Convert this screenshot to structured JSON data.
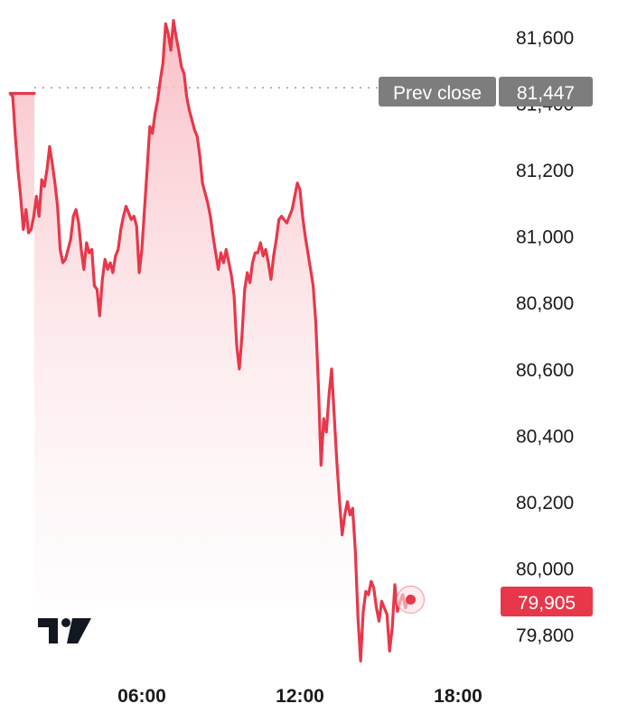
{
  "chart_data": {
    "type": "area",
    "prev_close_label": "Prev close",
    "prev_close_value_label": "81,447",
    "prev_close": 81447,
    "last_value_label": "79,905",
    "last_value": 79905,
    "y_ticks": [
      {
        "value": 81600,
        "label": "81,600"
      },
      {
        "value": 81400,
        "label": "81,400"
      },
      {
        "value": 81200,
        "label": "81,200"
      },
      {
        "value": 81000,
        "label": "81,000"
      },
      {
        "value": 80800,
        "label": "80,800"
      },
      {
        "value": 80600,
        "label": "80,600"
      },
      {
        "value": 80400,
        "label": "80,400"
      },
      {
        "value": 80200,
        "label": "80,200"
      },
      {
        "value": 80000,
        "label": "80,000"
      },
      {
        "value": 79800,
        "label": "79,800"
      }
    ],
    "x_ticks": [
      {
        "hour": 6,
        "label": "06:00"
      },
      {
        "hour": 12,
        "label": "12:00"
      },
      {
        "hour": 18,
        "label": "18:00"
      }
    ],
    "ylim": [
      79700,
      81700
    ],
    "xlim": [
      0.8,
      19.7
    ],
    "series": [
      {
        "values": [
          [
            1.0,
            81430
          ],
          [
            1.1,
            81420
          ],
          [
            1.2,
            81300
          ],
          [
            1.3,
            81200
          ],
          [
            1.4,
            81120
          ],
          [
            1.5,
            81020
          ],
          [
            1.6,
            81080
          ],
          [
            1.7,
            81010
          ],
          [
            1.8,
            81020
          ],
          [
            1.9,
            81060
          ],
          [
            2.0,
            81120
          ],
          [
            2.1,
            81060
          ],
          [
            2.2,
            81170
          ],
          [
            2.3,
            81150
          ],
          [
            2.4,
            81200
          ],
          [
            2.5,
            81270
          ],
          [
            2.6,
            81220
          ],
          [
            2.7,
            81160
          ],
          [
            2.8,
            81090
          ],
          [
            2.9,
            80960
          ],
          [
            3.0,
            80920
          ],
          [
            3.1,
            80930
          ],
          [
            3.2,
            80960
          ],
          [
            3.3,
            80990
          ],
          [
            3.4,
            81060
          ],
          [
            3.5,
            81080
          ],
          [
            3.6,
            81040
          ],
          [
            3.7,
            80960
          ],
          [
            3.8,
            80900
          ],
          [
            3.9,
            80980
          ],
          [
            4.0,
            80950
          ],
          [
            4.1,
            80960
          ],
          [
            4.2,
            80850
          ],
          [
            4.3,
            80840
          ],
          [
            4.4,
            80760
          ],
          [
            4.5,
            80870
          ],
          [
            4.6,
            80930
          ],
          [
            4.7,
            80900
          ],
          [
            4.8,
            80920
          ],
          [
            4.9,
            80890
          ],
          [
            5.0,
            80940
          ],
          [
            5.1,
            80960
          ],
          [
            5.2,
            81020
          ],
          [
            5.3,
            81060
          ],
          [
            5.4,
            81090
          ],
          [
            5.5,
            81070
          ],
          [
            5.6,
            81050
          ],
          [
            5.7,
            81060
          ],
          [
            5.8,
            81030
          ],
          [
            5.9,
            80890
          ],
          [
            6.0,
            80960
          ],
          [
            6.1,
            81080
          ],
          [
            6.2,
            81200
          ],
          [
            6.3,
            81330
          ],
          [
            6.4,
            81310
          ],
          [
            6.5,
            81370
          ],
          [
            6.6,
            81410
          ],
          [
            6.7,
            81470
          ],
          [
            6.8,
            81520
          ],
          [
            6.9,
            81640
          ],
          [
            7.0,
            81610
          ],
          [
            7.1,
            81560
          ],
          [
            7.2,
            81650
          ],
          [
            7.3,
            81600
          ],
          [
            7.4,
            81560
          ],
          [
            7.5,
            81510
          ],
          [
            7.6,
            81490
          ],
          [
            7.7,
            81420
          ],
          [
            7.8,
            81380
          ],
          [
            7.9,
            81350
          ],
          [
            8.0,
            81320
          ],
          [
            8.1,
            81300
          ],
          [
            8.2,
            81240
          ],
          [
            8.3,
            81160
          ],
          [
            8.4,
            81130
          ],
          [
            8.5,
            81100
          ],
          [
            8.6,
            81060
          ],
          [
            8.7,
            81000
          ],
          [
            8.8,
            80950
          ],
          [
            8.9,
            80900
          ],
          [
            9.0,
            80950
          ],
          [
            9.1,
            80920
          ],
          [
            9.2,
            80960
          ],
          [
            9.3,
            80920
          ],
          [
            9.4,
            80880
          ],
          [
            9.5,
            80820
          ],
          [
            9.6,
            80670
          ],
          [
            9.7,
            80600
          ],
          [
            9.8,
            80700
          ],
          [
            9.9,
            80840
          ],
          [
            10.0,
            80890
          ],
          [
            10.1,
            80860
          ],
          [
            10.2,
            80920
          ],
          [
            10.3,
            80950
          ],
          [
            10.4,
            80950
          ],
          [
            10.5,
            80980
          ],
          [
            10.6,
            80940
          ],
          [
            10.7,
            80960
          ],
          [
            10.8,
            80920
          ],
          [
            10.9,
            80870
          ],
          [
            11.0,
            80940
          ],
          [
            11.1,
            80990
          ],
          [
            11.2,
            81050
          ],
          [
            11.3,
            81060
          ],
          [
            11.4,
            81050
          ],
          [
            11.5,
            81040
          ],
          [
            11.6,
            81060
          ],
          [
            11.7,
            81080
          ],
          [
            11.8,
            81120
          ],
          [
            11.9,
            81160
          ],
          [
            12.0,
            81140
          ],
          [
            12.1,
            81060
          ],
          [
            12.2,
            81000
          ],
          [
            12.3,
            80950
          ],
          [
            12.4,
            80900
          ],
          [
            12.5,
            80850
          ],
          [
            12.6,
            80740
          ],
          [
            12.7,
            80550
          ],
          [
            12.8,
            80310
          ],
          [
            12.9,
            80450
          ],
          [
            13.0,
            80410
          ],
          [
            13.1,
            80520
          ],
          [
            13.2,
            80600
          ],
          [
            13.3,
            80460
          ],
          [
            13.4,
            80320
          ],
          [
            13.5,
            80200
          ],
          [
            13.6,
            80100
          ],
          [
            13.7,
            80160
          ],
          [
            13.8,
            80200
          ],
          [
            13.9,
            80160
          ],
          [
            14.0,
            80180
          ],
          [
            14.1,
            80050
          ],
          [
            14.2,
            79850
          ],
          [
            14.3,
            79720
          ],
          [
            14.4,
            79870
          ],
          [
            14.5,
            79930
          ],
          [
            14.6,
            79920
          ],
          [
            14.7,
            79960
          ],
          [
            14.8,
            79940
          ],
          [
            14.9,
            79880
          ],
          [
            15.0,
            79840
          ],
          [
            15.1,
            79900
          ],
          [
            15.2,
            79880
          ],
          [
            15.3,
            79860
          ],
          [
            15.4,
            79750
          ],
          [
            15.5,
            79820
          ],
          [
            15.6,
            79950
          ],
          [
            15.7,
            79870
          ],
          [
            15.8,
            79900
          ],
          [
            15.9,
            79920
          ],
          [
            16.0,
            79880
          ],
          [
            16.1,
            79910
          ],
          [
            16.2,
            79905
          ]
        ]
      }
    ]
  },
  "colors": {
    "line": "#e8374a",
    "fill_top": "#f8b4bc",
    "fill_bottom": "#ffffff",
    "prev_close_badge": "#7d7d7d",
    "last_value_badge": "#e8374a",
    "dotted_line": "#9a9a9a",
    "tick_text": "#1a1a1a"
  },
  "logo": {
    "icon": "tradingview-logo-icon"
  }
}
